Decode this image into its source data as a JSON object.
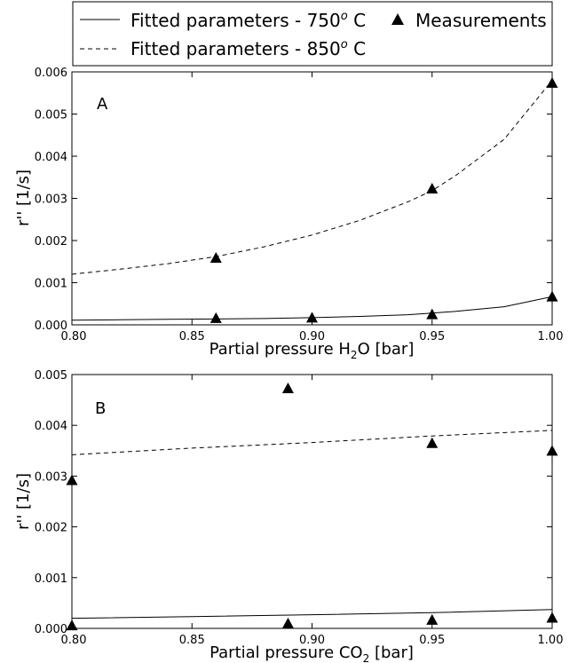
{
  "legend": {
    "entries": [
      {
        "label": "Fitted parameters - 750",
        "sup": "o",
        "suffix": " C",
        "style": "solid"
      },
      {
        "label": "Fitted parameters - 850",
        "sup": "o",
        "suffix": " C",
        "style": "dashed"
      },
      {
        "label": "Measurements",
        "style": "triangle"
      }
    ]
  },
  "chart_data": [
    {
      "type": "line",
      "panel_label": "A",
      "xlabel": {
        "pre": "Partial pressure H",
        "sub": "2",
        "post": "O [bar]"
      },
      "ylabel": "r'' [1/s]",
      "xlim": [
        0.8,
        1.0
      ],
      "ylim": [
        0,
        0.006
      ],
      "xticks": [
        0.8,
        0.85,
        0.9,
        0.95,
        1.0
      ],
      "xtick_labels": [
        "0.80",
        "0.85",
        "0.90",
        "0.95",
        "1.00"
      ],
      "yticks": [
        0,
        0.001,
        0.002,
        0.003,
        0.004,
        0.005,
        0.006
      ],
      "ytick_labels": [
        "0.000",
        "0.001",
        "0.002",
        "0.003",
        "0.004",
        "0.005",
        "0.006"
      ],
      "series": [
        {
          "name": "Fitted parameters - 750 C",
          "style": "solid",
          "x": [
            0.8,
            0.82,
            0.84,
            0.86,
            0.88,
            0.9,
            0.92,
            0.94,
            0.95,
            0.96,
            0.98,
            1.0
          ],
          "y": [
            0.00011,
            0.00012,
            0.00013,
            0.00014,
            0.00015,
            0.00017,
            0.0002,
            0.00024,
            0.00028,
            0.00032,
            0.00043,
            0.00067
          ]
        },
        {
          "name": "Fitted parameters - 850 C",
          "style": "dashed",
          "x": [
            0.8,
            0.82,
            0.84,
            0.86,
            0.88,
            0.9,
            0.92,
            0.94,
            0.95,
            0.96,
            0.98,
            1.0
          ],
          "y": [
            0.0012,
            0.00132,
            0.00145,
            0.00162,
            0.00185,
            0.00213,
            0.00248,
            0.00292,
            0.00318,
            0.00355,
            0.0044,
            0.0058
          ]
        },
        {
          "name": "Measurements",
          "style": "triangle",
          "x": [
            0.86,
            0.9,
            0.95,
            1.0,
            0.86,
            0.95,
            1.0
          ],
          "y": [
            0.00015,
            0.00016,
            0.00024,
            0.00066,
            0.00158,
            0.00322,
            0.00573
          ]
        }
      ]
    },
    {
      "type": "line",
      "panel_label": "B",
      "xlabel": {
        "pre": "Partial pressure CO",
        "sub": "2",
        "post": " [bar]"
      },
      "ylabel": "r'' [1/s]",
      "xlim": [
        0.8,
        1.0
      ],
      "ylim": [
        0,
        0.005
      ],
      "xticks": [
        0.8,
        0.85,
        0.9,
        0.95,
        1.0
      ],
      "xtick_labels": [
        "0.80",
        "0.85",
        "0.90",
        "0.95",
        "1.00"
      ],
      "yticks": [
        0,
        0.001,
        0.002,
        0.003,
        0.004,
        0.005
      ],
      "ytick_labels": [
        "0.000",
        "0.001",
        "0.002",
        "0.003",
        "0.004",
        "0.005"
      ],
      "series": [
        {
          "name": "Fitted parameters - 750 C",
          "style": "solid",
          "x": [
            0.8,
            0.85,
            0.9,
            0.95,
            1.0
          ],
          "y": [
            0.0002,
            0.00023,
            0.00027,
            0.00031,
            0.00037
          ]
        },
        {
          "name": "Fitted parameters - 850 C",
          "style": "dashed",
          "x": [
            0.8,
            0.85,
            0.9,
            0.95,
            1.0
          ],
          "y": [
            0.00342,
            0.00355,
            0.00366,
            0.00379,
            0.0039
          ]
        },
        {
          "name": "Measurements",
          "style": "triangle",
          "x": [
            0.8,
            0.89,
            0.95,
            1.0,
            0.8,
            0.89,
            0.95,
            1.0
          ],
          "y": [
            5e-05,
            9e-05,
            0.00016,
            0.0002,
            0.00291,
            0.00472,
            0.00364,
            0.00349
          ]
        }
      ]
    }
  ]
}
